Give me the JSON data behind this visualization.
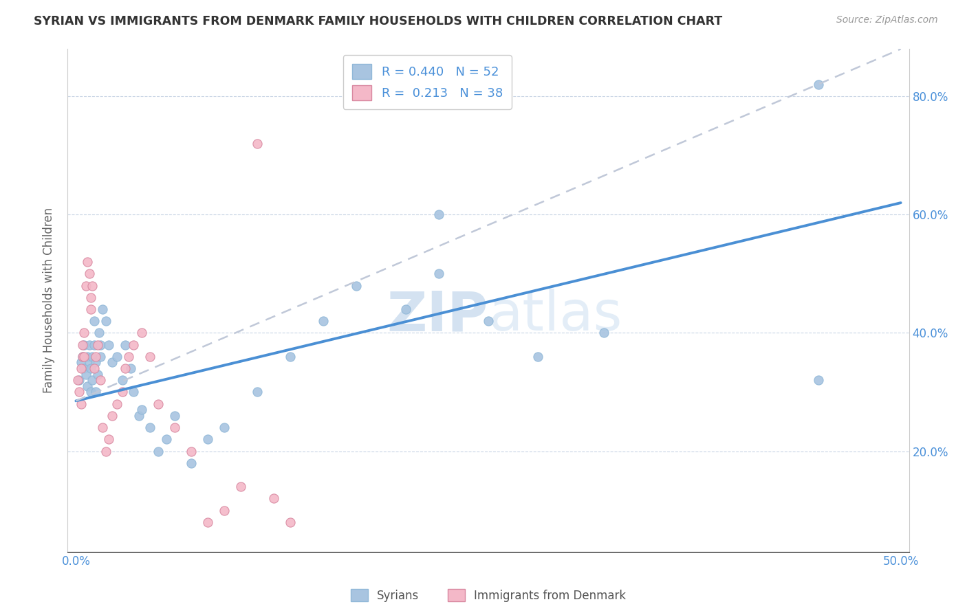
{
  "title": "SYRIAN VS IMMIGRANTS FROM DENMARK FAMILY HOUSEHOLDS WITH CHILDREN CORRELATION CHART",
  "source": "Source: ZipAtlas.com",
  "ylabel": "Family Households with Children",
  "xlabel_syrians": "Syrians",
  "xlabel_denmark": "Immigrants from Denmark",
  "xlim": [
    -0.005,
    0.505
  ],
  "ylim": [
    0.03,
    0.88
  ],
  "xticks": [
    0.0,
    0.1,
    0.2,
    0.3,
    0.4,
    0.5
  ],
  "yticks": [
    0.2,
    0.4,
    0.6,
    0.8
  ],
  "xticklabels": [
    "0.0%",
    "",
    "",
    "",
    "",
    "50.0%"
  ],
  "yticklabels_right": [
    "20.0%",
    "40.0%",
    "60.0%",
    "80.0%"
  ],
  "r_syrians": 0.44,
  "n_syrians": 52,
  "r_denmark": 0.213,
  "n_denmark": 38,
  "color_syrians": "#a8c4e0",
  "color_denmark": "#f4b8c8",
  "line_color_syrians": "#4a8fd4",
  "line_color_denmark": "#e8a0b8",
  "line_dash_color": "#cccccc",
  "watermark_color": "#dce8f4",
  "syrians_x": [
    0.002,
    0.003,
    0.004,
    0.005,
    0.005,
    0.006,
    0.007,
    0.007,
    0.008,
    0.008,
    0.009,
    0.009,
    0.01,
    0.01,
    0.011,
    0.011,
    0.012,
    0.012,
    0.013,
    0.014,
    0.015,
    0.015,
    0.016,
    0.018,
    0.02,
    0.022,
    0.025,
    0.028,
    0.03,
    0.033,
    0.035,
    0.038,
    0.04,
    0.045,
    0.05,
    0.055,
    0.06,
    0.07,
    0.08,
    0.09,
    0.11,
    0.13,
    0.15,
    0.17,
    0.2,
    0.22,
    0.25,
    0.28,
    0.32,
    0.45,
    0.45,
    0.22
  ],
  "syrians_y": [
    0.32,
    0.35,
    0.36,
    0.34,
    0.38,
    0.33,
    0.36,
    0.31,
    0.35,
    0.38,
    0.34,
    0.3,
    0.36,
    0.32,
    0.38,
    0.42,
    0.35,
    0.3,
    0.33,
    0.4,
    0.38,
    0.36,
    0.44,
    0.42,
    0.38,
    0.35,
    0.36,
    0.32,
    0.38,
    0.34,
    0.3,
    0.26,
    0.27,
    0.24,
    0.2,
    0.22,
    0.26,
    0.18,
    0.22,
    0.24,
    0.3,
    0.36,
    0.42,
    0.48,
    0.44,
    0.5,
    0.42,
    0.36,
    0.4,
    0.82,
    0.32,
    0.6
  ],
  "denmark_x": [
    0.001,
    0.002,
    0.003,
    0.003,
    0.004,
    0.004,
    0.005,
    0.005,
    0.006,
    0.007,
    0.008,
    0.009,
    0.009,
    0.01,
    0.011,
    0.012,
    0.013,
    0.015,
    0.016,
    0.018,
    0.02,
    0.022,
    0.025,
    0.028,
    0.03,
    0.032,
    0.035,
    0.04,
    0.045,
    0.05,
    0.06,
    0.07,
    0.08,
    0.09,
    0.1,
    0.11,
    0.12,
    0.13
  ],
  "denmark_y": [
    0.32,
    0.3,
    0.28,
    0.34,
    0.36,
    0.38,
    0.36,
    0.4,
    0.48,
    0.52,
    0.5,
    0.46,
    0.44,
    0.48,
    0.34,
    0.36,
    0.38,
    0.32,
    0.24,
    0.2,
    0.22,
    0.26,
    0.28,
    0.3,
    0.34,
    0.36,
    0.38,
    0.4,
    0.36,
    0.28,
    0.24,
    0.2,
    0.08,
    0.1,
    0.14,
    0.72,
    0.12,
    0.08
  ],
  "syrians_line_x": [
    0.0,
    0.5
  ],
  "syrians_line_y": [
    0.285,
    0.62
  ],
  "denmark_line_x": [
    0.0,
    0.5
  ],
  "denmark_line_y": [
    0.285,
    0.88
  ]
}
